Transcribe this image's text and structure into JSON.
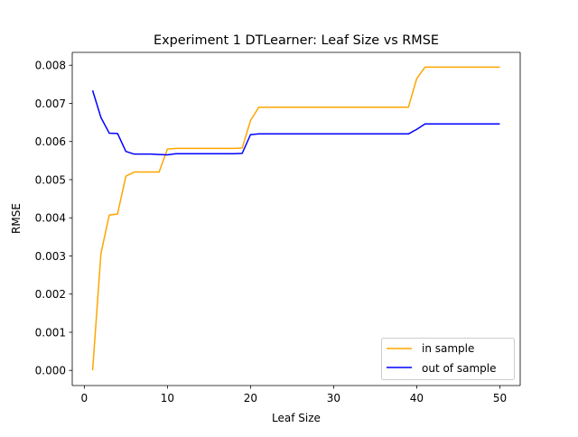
{
  "chart_data": {
    "type": "line",
    "title": "Experiment 1 DTLearner: Leaf Size vs RMSE",
    "xlabel": "Leaf Size",
    "ylabel": "RMSE",
    "xlim": [
      -1.45,
      52.45
    ],
    "ylim": [
      -0.000397,
      0.008337
    ],
    "xticks": [
      0,
      10,
      20,
      30,
      40,
      50
    ],
    "xtick_labels": [
      "0",
      "10",
      "20",
      "30",
      "40",
      "50"
    ],
    "yticks": [
      0.0,
      0.001,
      0.002,
      0.003,
      0.004,
      0.005,
      0.006,
      0.007,
      0.008
    ],
    "ytick_labels": [
      "0.000",
      "0.001",
      "0.002",
      "0.003",
      "0.004",
      "0.005",
      "0.006",
      "0.007",
      "0.008"
    ],
    "grid": false,
    "legend_position": "lower right",
    "x": [
      1,
      2,
      3,
      4,
      5,
      6,
      7,
      8,
      9,
      10,
      11,
      12,
      13,
      14,
      15,
      16,
      17,
      18,
      19,
      20,
      21,
      22,
      23,
      24,
      25,
      26,
      27,
      28,
      29,
      30,
      31,
      32,
      33,
      34,
      35,
      36,
      37,
      38,
      39,
      40,
      41,
      42,
      43,
      44,
      45,
      46,
      47,
      48,
      49,
      50
    ],
    "series": [
      {
        "name": "in sample",
        "color": "#ffa500",
        "values": [
          0.0,
          0.00306,
          0.00407,
          0.0041,
          0.00509,
          0.0052,
          0.0052,
          0.0052,
          0.0052,
          0.0058,
          0.00582,
          0.00582,
          0.00582,
          0.00582,
          0.00582,
          0.00582,
          0.00582,
          0.00582,
          0.00583,
          0.00655,
          0.0069,
          0.0069,
          0.0069,
          0.0069,
          0.0069,
          0.0069,
          0.0069,
          0.0069,
          0.0069,
          0.0069,
          0.0069,
          0.0069,
          0.0069,
          0.0069,
          0.0069,
          0.0069,
          0.0069,
          0.0069,
          0.0069,
          0.00765,
          0.00795,
          0.00795,
          0.00795,
          0.00795,
          0.00795,
          0.00795,
          0.00795,
          0.00795,
          0.00795,
          0.00795
        ]
      },
      {
        "name": "out of sample",
        "color": "#0000ff",
        "values": [
          0.00734,
          0.00663,
          0.00622,
          0.00621,
          0.00574,
          0.00567,
          0.00567,
          0.00567,
          0.00566,
          0.00565,
          0.00568,
          0.00568,
          0.00568,
          0.00568,
          0.00568,
          0.00568,
          0.00568,
          0.00568,
          0.00569,
          0.00618,
          0.0062,
          0.0062,
          0.0062,
          0.0062,
          0.0062,
          0.0062,
          0.0062,
          0.0062,
          0.0062,
          0.0062,
          0.0062,
          0.0062,
          0.0062,
          0.0062,
          0.0062,
          0.0062,
          0.0062,
          0.0062,
          0.0062,
          0.00632,
          0.00646,
          0.00646,
          0.00646,
          0.00646,
          0.00646,
          0.00646,
          0.00646,
          0.00646,
          0.00646,
          0.00646
        ]
      }
    ]
  }
}
